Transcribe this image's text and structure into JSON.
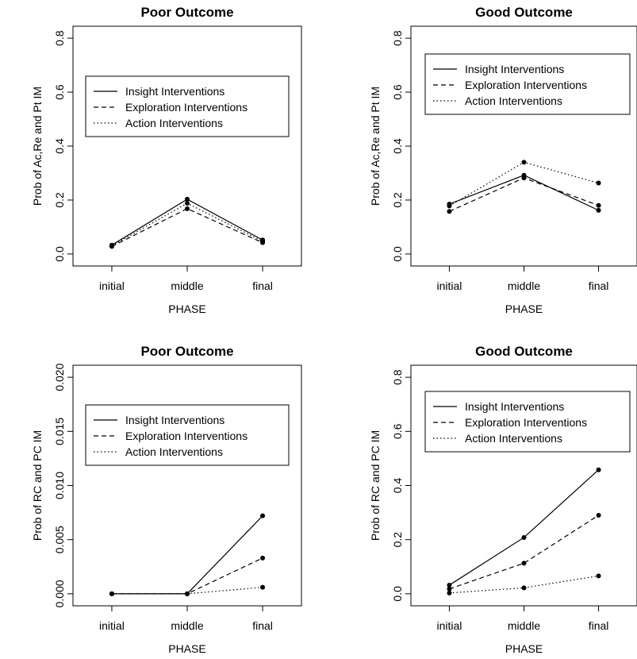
{
  "chart_data": [
    {
      "type": "line",
      "title": "Poor Outcome",
      "xlabel": "PHASE",
      "ylabel": "Prob of Ac,Re and Pt IM",
      "categories": [
        "initial",
        "middle",
        "final"
      ],
      "ylim": [
        0,
        0.8
      ],
      "yticks": [
        "0.0",
        "0.2",
        "0.4",
        "0.6",
        "0.8"
      ],
      "legend_position": "center",
      "series": [
        {
          "name": "Insight Interventions",
          "style": "solid",
          "values": [
            0.033,
            0.203,
            0.052
          ]
        },
        {
          "name": "Exploration Interventions",
          "style": "dashed",
          "values": [
            0.028,
            0.168,
            0.042
          ]
        },
        {
          "name": "Action Interventions",
          "style": "dotted",
          "values": [
            0.03,
            0.188,
            0.047
          ]
        }
      ]
    },
    {
      "type": "line",
      "title": "Good Outcome",
      "xlabel": "PHASE",
      "ylabel": "Prob of Ac,Re and Pt IM",
      "categories": [
        "initial",
        "middle",
        "final"
      ],
      "ylim": [
        0,
        0.8
      ],
      "yticks": [
        "0.0",
        "0.2",
        "0.4",
        "0.6",
        "0.8"
      ],
      "legend_position": "top",
      "series": [
        {
          "name": "Insight Interventions",
          "style": "solid",
          "values": [
            0.185,
            0.292,
            0.162
          ]
        },
        {
          "name": "Exploration Interventions",
          "style": "dashed",
          "values": [
            0.158,
            0.282,
            0.18
          ]
        },
        {
          "name": "Action Interventions",
          "style": "dotted",
          "values": [
            0.178,
            0.34,
            0.263
          ]
        }
      ]
    },
    {
      "type": "line",
      "title": "Poor Outcome",
      "xlabel": "PHASE",
      "ylabel": "Prob of RC and PC IM",
      "categories": [
        "initial",
        "middle",
        "final"
      ],
      "ylim": [
        0,
        0.02
      ],
      "yticks": [
        "0.000",
        "0.005",
        "0.010",
        "0.015",
        "0.020"
      ],
      "legend_position": "center",
      "series": [
        {
          "name": "Insight Interventions",
          "style": "solid",
          "values": [
            0.0,
            0.0,
            0.0072
          ]
        },
        {
          "name": "Exploration Interventions",
          "style": "dashed",
          "values": [
            0.0,
            0.0,
            0.0033
          ]
        },
        {
          "name": "Action Interventions",
          "style": "dotted",
          "values": [
            0.0,
            0.0,
            0.0006
          ]
        }
      ]
    },
    {
      "type": "line",
      "title": "Good Outcome",
      "xlabel": "PHASE",
      "ylabel": "Prob of RC and PC IM",
      "categories": [
        "initial",
        "middle",
        "final"
      ],
      "ylim": [
        0,
        0.8
      ],
      "yticks": [
        "0.0",
        "0.2",
        "0.4",
        "0.6",
        "0.8"
      ],
      "legend_position": "top",
      "series": [
        {
          "name": "Insight Interventions",
          "style": "solid",
          "values": [
            0.032,
            0.208,
            0.458
          ]
        },
        {
          "name": "Exploration Interventions",
          "style": "dashed",
          "values": [
            0.018,
            0.113,
            0.29
          ]
        },
        {
          "name": "Action Interventions",
          "style": "dotted",
          "values": [
            0.003,
            0.022,
            0.066
          ]
        }
      ]
    }
  ]
}
